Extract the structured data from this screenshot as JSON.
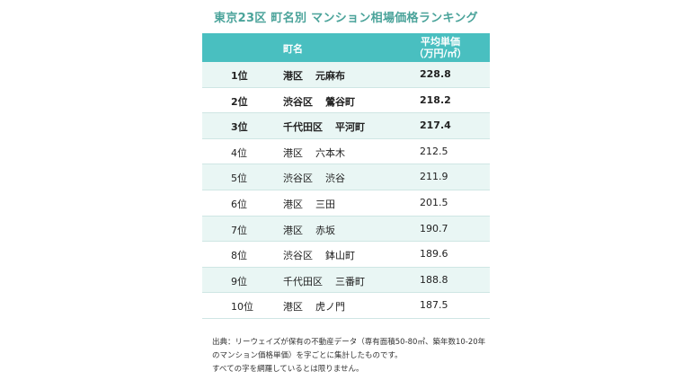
{
  "title": "東京23区 町名別 マンション相場価格ランキング",
  "table": {
    "header_name": "町名",
    "header_price_line1": "平均単価",
    "header_price_line2": "（万円/㎡）",
    "rows": [
      {
        "rank": "1位",
        "ward": "港区",
        "town": "元麻布",
        "price": "228.8",
        "bold": true,
        "shaded": true
      },
      {
        "rank": "2位",
        "ward": "渋谷区",
        "town": "鶯谷町",
        "price": "218.2",
        "bold": true,
        "shaded": false
      },
      {
        "rank": "3位",
        "ward": "千代田区",
        "town": "平河町",
        "price": "217.4",
        "bold": true,
        "shaded": true
      },
      {
        "rank": "4位",
        "ward": "港区",
        "town": "六本木",
        "price": "212.5",
        "bold": false,
        "shaded": false
      },
      {
        "rank": "5位",
        "ward": "渋谷区",
        "town": "渋谷",
        "price": "211.9",
        "bold": false,
        "shaded": true
      },
      {
        "rank": "6位",
        "ward": "港区",
        "town": "三田",
        "price": "201.5",
        "bold": false,
        "shaded": false
      },
      {
        "rank": "7位",
        "ward": "港区",
        "town": "赤坂",
        "price": "190.7",
        "bold": false,
        "shaded": true
      },
      {
        "rank": "8位",
        "ward": "渋谷区",
        "town": "鉢山町",
        "price": "189.6",
        "bold": false,
        "shaded": false
      },
      {
        "rank": "9位",
        "ward": "千代田区",
        "town": "三番町",
        "price": "188.8",
        "bold": false,
        "shaded": true
      },
      {
        "rank": "10位",
        "ward": "港区",
        "town": "虎ノ門",
        "price": "187.5",
        "bold": false,
        "shaded": false
      }
    ]
  },
  "note": {
    "line1": "出典：リーウェイズが保有の不動産データ（専有面積50-80㎡、築年数10-20年",
    "line2": "のマンション価格単価）を字ごとに集計したものです。",
    "line3": "すべての字を網羅しているとは限りません。"
  },
  "colors": {
    "title": "#4aa39a",
    "header_bg": "#49bfc0",
    "row_shade": "#e9f6f4"
  }
}
